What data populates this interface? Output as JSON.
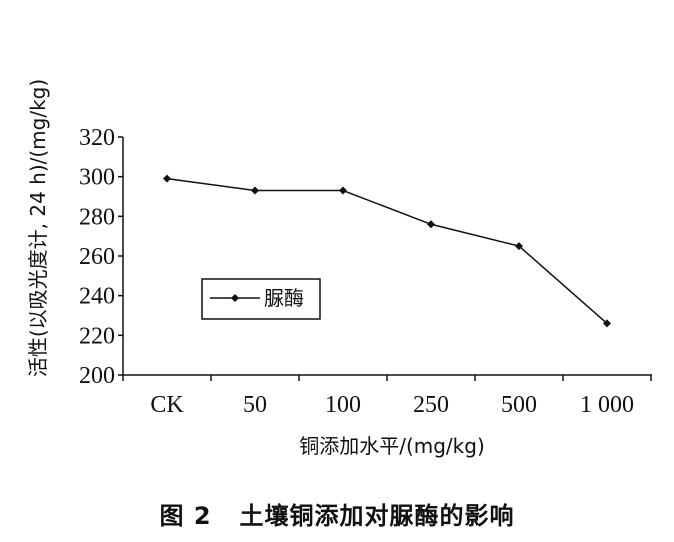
{
  "chart_data": {
    "type": "line",
    "categories": [
      "CK",
      "50",
      "100",
      "250",
      "500",
      "1 000"
    ],
    "series": [
      {
        "name": "脲酶",
        "values": [
          299,
          293,
          293,
          276,
          265,
          226
        ]
      }
    ],
    "xlabel": "铜添加水平/(mg/kg)",
    "ylabel": "活性(以吸光度计, 24 h)/(mg/kg)",
    "yticks": [
      "200",
      "220",
      "240",
      "260",
      "280",
      "300",
      "320"
    ],
    "ylim": [
      200,
      320
    ],
    "legend": "inside-left",
    "grid": false
  },
  "caption": {
    "figure_number": "图 2",
    "title": "土壤铜添加对脲酶的影响"
  },
  "colors": {
    "line": "#111111",
    "axis": "#111111"
  }
}
